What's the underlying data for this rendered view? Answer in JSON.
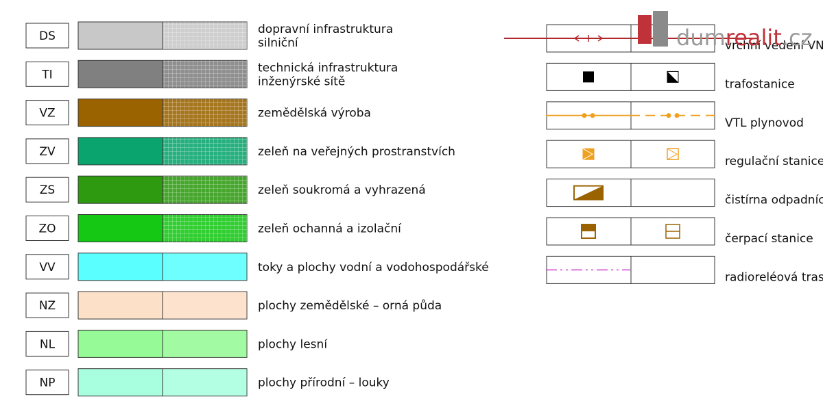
{
  "legend_left": [
    {
      "code": "DS",
      "label": [
        "dopravní infrastruktura",
        "silniční"
      ],
      "color": "#c8c8c8",
      "grid": true
    },
    {
      "code": "TI",
      "label": [
        "technická infrastruktura",
        "inženýrské sítě"
      ],
      "color": "#808080",
      "grid": true
    },
    {
      "code": "VZ",
      "label": [
        "zemědělská výroba"
      ],
      "color": "#9a6300",
      "grid": true
    },
    {
      "code": "ZV",
      "label": [
        "zeleň na veřejných prostranstvích"
      ],
      "color": "#0aa56e",
      "grid": true
    },
    {
      "code": "ZS",
      "label": [
        "zeleň soukromá a vyhrazená"
      ],
      "color": "#2e9a10",
      "grid": true
    },
    {
      "code": "ZO",
      "label": [
        "zeleň ochanná a izolační"
      ],
      "color": "#14c814",
      "grid": true
    },
    {
      "code": "VV",
      "label": [
        "toky a plochy vodní a vodohospodářské"
      ],
      "color": "#5affff",
      "grid": false
    },
    {
      "code": "NZ",
      "label": [
        "plochy zemědělské – orná půda"
      ],
      "color": "#fde0c8",
      "grid": false
    },
    {
      "code": "NL",
      "label": [
        "plochy lesní"
      ],
      "color": "#96fa96",
      "grid": false
    },
    {
      "code": "NP",
      "label": [
        "plochy přírodní – louky"
      ],
      "color": "#a8ffe0",
      "grid": false
    }
  ],
  "legend_right": [
    "vrchní vedení VN",
    "trafostanice",
    "VTL plynovod",
    "regulační stanice",
    "čistírna odpadních vod",
    "čerpací stanice",
    "radioreléová trasa"
  ],
  "watermark": {
    "part1": "dum",
    "part2": "realit",
    "part3": ".cz"
  }
}
